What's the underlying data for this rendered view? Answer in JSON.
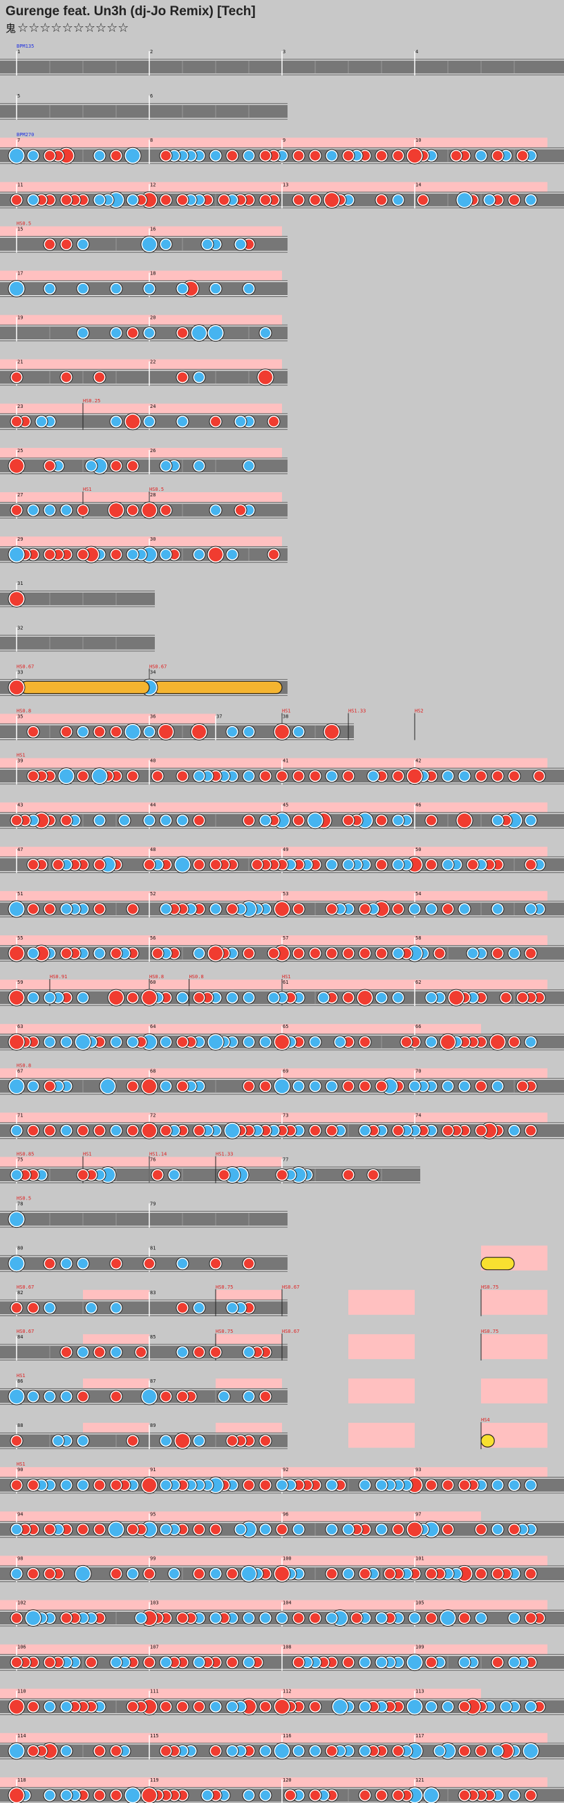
{
  "header": {
    "title": "Gurenge feat. Un3h (dj-Jo Remix) [Tech]",
    "difficulty_icon": "oni-icon",
    "stars": "☆☆☆☆☆☆☆☆☆☆"
  },
  "colors": {
    "background": "#c8c8c8",
    "lane": "#777777",
    "gogo": "#ffc0c0",
    "don": "#f03c30",
    "ka": "#46b4f0",
    "drumroll": "#f4b430",
    "balloon": "#f8e030"
  },
  "rows": [
    {
      "measures": [
        {
          "num": "1",
          "s": 4
        },
        {
          "num": "2",
          "s": 4
        },
        {
          "num": "3",
          "s": 4
        },
        {
          "num": "4",
          "s": 4
        }
      ],
      "annotations": [
        {
          "m": 0,
          "t": "BPM135",
          "c": "blue"
        }
      ],
      "notes": []
    },
    {
      "measures": [
        {
          "num": "5",
          "s": 4
        },
        {
          "num": "6",
          "s": 4
        }
      ],
      "annotations": [],
      "notes": []
    },
    {
      "measures": [
        {
          "num": "7",
          "s": 4
        },
        {
          "num": "8",
          "s": 4
        },
        {
          "num": "9",
          "s": 4
        },
        {
          "num": "10",
          "s": 4
        }
      ],
      "gogo": [
        [
          0,
          4
        ]
      ],
      "annotations": [
        {
          "m": 0,
          "t": "BPM270",
          "c": "blue"
        }
      ],
      "pattern": "dense"
    },
    {
      "measures": [
        {
          "num": "11",
          "s": 4
        },
        {
          "num": "12",
          "s": 4
        },
        {
          "num": "13",
          "s": 4
        },
        {
          "num": "14",
          "s": 4
        }
      ],
      "gogo": [
        [
          0,
          4
        ]
      ],
      "pattern": "dense"
    },
    {
      "measures": [
        {
          "num": "15",
          "s": 4
        },
        {
          "num": "16",
          "s": 4
        }
      ],
      "gogo": [
        [
          0,
          2
        ]
      ],
      "annotations": [
        {
          "m": 0,
          "t": "HS0.5",
          "c": "red"
        }
      ],
      "pattern": "sparse"
    },
    {
      "measures": [
        {
          "num": "17",
          "s": 4
        },
        {
          "num": "18",
          "s": 4
        }
      ],
      "gogo": [
        [
          0,
          2
        ]
      ],
      "pattern": "sparse"
    },
    {
      "measures": [
        {
          "num": "19",
          "s": 4
        },
        {
          "num": "20",
          "s": 4
        }
      ],
      "gogo": [
        [
          0,
          2
        ]
      ],
      "pattern": "sparse"
    },
    {
      "measures": [
        {
          "num": "21",
          "s": 4
        },
        {
          "num": "22",
          "s": 4
        }
      ],
      "gogo": [
        [
          0,
          2
        ]
      ],
      "pattern": "mix"
    },
    {
      "measures": [
        {
          "num": "23",
          "s": 4
        },
        {
          "num": "24",
          "s": 4
        }
      ],
      "gogo": [
        [
          0,
          2
        ]
      ],
      "annotations": [
        {
          "m": 0.5,
          "t": "HS0.25",
          "c": "red"
        }
      ],
      "pattern": "sparse"
    },
    {
      "measures": [
        {
          "num": "25",
          "s": 4
        },
        {
          "num": "26",
          "s": 4
        }
      ],
      "gogo": [
        [
          0,
          2
        ]
      ],
      "pattern": "mix"
    },
    {
      "measures": [
        {
          "num": "27",
          "s": 4
        },
        {
          "num": "28",
          "s": 4
        }
      ],
      "gogo": [
        [
          0,
          2
        ]
      ],
      "annotations": [
        {
          "m": 0.5,
          "t": "HS1",
          "c": "red"
        },
        {
          "m": 1,
          "t": "HS0.5",
          "c": "red"
        }
      ],
      "pattern": "mix"
    },
    {
      "measures": [
        {
          "num": "29",
          "s": 4
        },
        {
          "num": "30",
          "s": 4
        }
      ],
      "gogo": [
        [
          0,
          2
        ]
      ],
      "pattern": "dense"
    },
    {
      "measures": [
        {
          "num": "31",
          "s": 4
        }
      ],
      "notes": [
        {
          "p": 0,
          "t": "D",
          "b": 1
        }
      ]
    },
    {
      "measures": [
        {
          "num": "32",
          "s": 4
        }
      ],
      "notes": []
    },
    {
      "measures": [
        {
          "num": "33",
          "s": 4
        },
        {
          "num": "34",
          "s": 4
        }
      ],
      "annotations": [
        {
          "m": 0,
          "t": "HS0.67",
          "c": "red"
        },
        {
          "m": 1,
          "t": "HS0.67",
          "c": "red"
        }
      ],
      "notes": [
        {
          "p": 0,
          "t": "D",
          "b": 1
        },
        {
          "p": 0.03,
          "t": "R",
          "e": 1.0
        },
        {
          "p": 1,
          "t": "K",
          "b": 1
        },
        {
          "p": 1.03,
          "t": "R",
          "e": 2.0
        }
      ]
    },
    {
      "measures": [
        {
          "num": "35",
          "s": 4
        },
        {
          "num": "36",
          "s": 2
        },
        {
          "num": "37",
          "s": 2
        },
        {
          "num": "38",
          "s": 2
        }
      ],
      "gogo": [
        [
          0,
          1.5
        ]
      ],
      "annotations": [
        {
          "m": 0,
          "t": "HS0.8",
          "c": "red"
        },
        {
          "m": 2,
          "t": "HS1",
          "c": "red"
        },
        {
          "m": 2.5,
          "t": "HS1.33",
          "c": "red"
        },
        {
          "m": 3,
          "t": "HS2",
          "c": "red"
        }
      ],
      "pattern": "big"
    },
    {
      "measures": [
        {
          "num": "39",
          "s": 4
        },
        {
          "num": "40",
          "s": 4
        },
        {
          "num": "41",
          "s": 4
        },
        {
          "num": "42",
          "s": 4
        }
      ],
      "gogo": [
        [
          0,
          4
        ]
      ],
      "annotations": [
        {
          "m": 0,
          "t": "HS1",
          "c": "red"
        }
      ],
      "pattern": "dense"
    },
    {
      "measures": [
        {
          "num": "43",
          "s": 4
        },
        {
          "num": "44",
          "s": 4
        },
        {
          "num": "45",
          "s": 4
        },
        {
          "num": "46",
          "s": 4
        }
      ],
      "gogo": [
        [
          0,
          4
        ]
      ],
      "pattern": "dense"
    },
    {
      "measures": [
        {
          "num": "47",
          "s": 4
        },
        {
          "num": "48",
          "s": 4
        },
        {
          "num": "49",
          "s": 4
        },
        {
          "num": "50",
          "s": 4
        }
      ],
      "gogo": [
        [
          0,
          4
        ]
      ],
      "pattern": "dense"
    },
    {
      "measures": [
        {
          "num": "51",
          "s": 4
        },
        {
          "num": "52",
          "s": 4
        },
        {
          "num": "53",
          "s": 4
        },
        {
          "num": "54",
          "s": 4
        }
      ],
      "gogo": [
        [
          0,
          4
        ]
      ],
      "pattern": "dense"
    },
    {
      "measures": [
        {
          "num": "55",
          "s": 4
        },
        {
          "num": "56",
          "s": 4
        },
        {
          "num": "57",
          "s": 4
        },
        {
          "num": "58",
          "s": 4
        }
      ],
      "gogo": [
        [
          0,
          4
        ]
      ],
      "pattern": "dense"
    },
    {
      "measures": [
        {
          "num": "59",
          "s": 4
        },
        {
          "num": "60",
          "s": 4
        },
        {
          "num": "61",
          "s": 4
        },
        {
          "num": "62",
          "s": 4
        }
      ],
      "gogo": [
        [
          0,
          4
        ]
      ],
      "annotations": [
        {
          "m": 0.25,
          "t": "HS0.91",
          "c": "red"
        },
        {
          "m": 1,
          "t": "HS0.8",
          "c": "red"
        },
        {
          "m": 1.3,
          "t": "HS0.8",
          "c": "red"
        },
        {
          "m": 2,
          "t": "HS1",
          "c": "red"
        }
      ],
      "pattern": "dense"
    },
    {
      "measures": [
        {
          "num": "63",
          "s": 4
        },
        {
          "num": "64",
          "s": 4
        },
        {
          "num": "65",
          "s": 4
        },
        {
          "num": "66",
          "s": 4
        }
      ],
      "gogo": [
        [
          0,
          3.5
        ]
      ],
      "pattern": "dense"
    },
    {
      "measures": [
        {
          "num": "67",
          "s": 4
        },
        {
          "num": "68",
          "s": 4
        },
        {
          "num": "69",
          "s": 4
        },
        {
          "num": "70",
          "s": 4
        }
      ],
      "gogo": [
        [
          0,
          4
        ]
      ],
      "annotations": [
        {
          "m": 0,
          "t": "HS0.8",
          "c": "red"
        }
      ],
      "pattern": "dense"
    },
    {
      "measures": [
        {
          "num": "71",
          "s": 4
        },
        {
          "num": "72",
          "s": 4
        },
        {
          "num": "73",
          "s": 4
        },
        {
          "num": "74",
          "s": 4
        }
      ],
      "gogo": [
        [
          0,
          4
        ]
      ],
      "pattern": "dense"
    },
    {
      "measures": [
        {
          "num": "75",
          "s": 4
        },
        {
          "num": "76",
          "s": 4
        },
        {
          "num": "77",
          "s": 4
        }
      ],
      "gogo": [
        [
          0,
          2
        ]
      ],
      "annotations": [
        {
          "m": 0,
          "t": "HS0.85",
          "c": "red"
        },
        {
          "m": 0.5,
          "t": "HS1",
          "c": "red"
        },
        {
          "m": 1,
          "t": "HS1.14",
          "c": "red"
        },
        {
          "m": 1.5,
          "t": "HS1.33",
          "c": "red"
        }
      ],
      "pattern": "bursts"
    },
    {
      "measures": [
        {
          "num": "78",
          "s": 4
        },
        {
          "num": "79",
          "s": 4
        }
      ],
      "annotations": [
        {
          "m": 0,
          "t": "HS0.5",
          "c": "red"
        }
      ],
      "notes": [
        {
          "p": 0,
          "t": "K",
          "b": 1
        }
      ]
    },
    {
      "measures": [
        {
          "num": "80",
          "s": 4
        },
        {
          "num": "81",
          "s": 4
        }
      ],
      "gogo": [
        [
          3.5,
          4
        ]
      ],
      "pattern": "sparse",
      "notes": [
        {
          "p": 3.5,
          "t": "B",
          "e": 3.75
        }
      ]
    },
    {
      "measures": [
        {
          "num": "82",
          "s": 4
        },
        {
          "num": "83",
          "s": 4
        }
      ],
      "gogo": [
        [
          0.5,
          1
        ],
        [
          1.5,
          2
        ],
        [
          2.5,
          3
        ],
        [
          3.5,
          4
        ]
      ],
      "annotations": [
        {
          "m": 0,
          "t": "HS0.67",
          "c": "red"
        },
        {
          "m": 1.5,
          "t": "HS0.75",
          "c": "red"
        },
        {
          "m": 2,
          "t": "HS0.67",
          "c": "red"
        },
        {
          "m": 3.5,
          "t": "HS0.75",
          "c": "red"
        }
      ],
      "pattern": "mix"
    },
    {
      "measures": [
        {
          "num": "84",
          "s": 4
        },
        {
          "num": "85",
          "s": 4
        }
      ],
      "gogo": [
        [
          0.5,
          1
        ],
        [
          1.5,
          2
        ],
        [
          2.5,
          3
        ],
        [
          3.5,
          4
        ]
      ],
      "annotations": [
        {
          "m": 0,
          "t": "HS0.67",
          "c": "red"
        },
        {
          "m": 1.5,
          "t": "HS0.75",
          "c": "red"
        },
        {
          "m": 2,
          "t": "HS0.67",
          "c": "red"
        },
        {
          "m": 3.5,
          "t": "HS0.75",
          "c": "red"
        }
      ],
      "pattern": "mix"
    },
    {
      "measures": [
        {
          "num": "86",
          "s": 4
        },
        {
          "num": "87",
          "s": 4
        }
      ],
      "gogo": [
        [
          0.5,
          1
        ],
        [
          1.5,
          2
        ],
        [
          2.5,
          3
        ],
        [
          3.5,
          4
        ]
      ],
      "annotations": [
        {
          "m": 0,
          "t": "HS1",
          "c": "red"
        }
      ],
      "pattern": "mix"
    },
    {
      "measures": [
        {
          "num": "88",
          "s": 4
        },
        {
          "num": "89",
          "s": 4
        }
      ],
      "gogo": [
        [
          0.5,
          1
        ],
        [
          1.5,
          2
        ],
        [
          2.5,
          3
        ],
        [
          3.5,
          4
        ]
      ],
      "annotations": [
        {
          "m": 3.5,
          "t": "HS4",
          "c": "red"
        }
      ],
      "pattern": "mix",
      "notes": [
        {
          "p": 3.5,
          "t": "B",
          "e": 3.6
        }
      ]
    },
    {
      "measures": [
        {
          "num": "90",
          "s": 4
        },
        {
          "num": "91",
          "s": 4
        },
        {
          "num": "92",
          "s": 4
        },
        {
          "num": "93",
          "s": 4
        }
      ],
      "gogo": [
        [
          0,
          4
        ]
      ],
      "annotations": [
        {
          "m": 0,
          "t": "HS1",
          "c": "red"
        }
      ],
      "pattern": "dense"
    },
    {
      "measures": [
        {
          "num": "94",
          "s": 4
        },
        {
          "num": "95",
          "s": 4
        },
        {
          "num": "96",
          "s": 4
        },
        {
          "num": "97",
          "s": 4
        }
      ],
      "gogo": [
        [
          0,
          3.5
        ]
      ],
      "pattern": "dense"
    },
    {
      "measures": [
        {
          "num": "98",
          "s": 4
        },
        {
          "num": "99",
          "s": 4
        },
        {
          "num": "100",
          "s": 4
        },
        {
          "num": "101",
          "s": 4
        }
      ],
      "gogo": [
        [
          0,
          4
        ]
      ],
      "pattern": "dense"
    },
    {
      "measures": [
        {
          "num": "102",
          "s": 4
        },
        {
          "num": "103",
          "s": 4
        },
        {
          "num": "104",
          "s": 4
        },
        {
          "num": "105",
          "s": 4
        }
      ],
      "gogo": [
        [
          0,
          4
        ]
      ],
      "pattern": "dense"
    },
    {
      "measures": [
        {
          "num": "106",
          "s": 4
        },
        {
          "num": "107",
          "s": 4
        },
        {
          "num": "108",
          "s": 4
        },
        {
          "num": "109",
          "s": 4
        }
      ],
      "gogo": [
        [
          0,
          4
        ]
      ],
      "pattern": "dense"
    },
    {
      "measures": [
        {
          "num": "110",
          "s": 4
        },
        {
          "num": "111",
          "s": 4
        },
        {
          "num": "112",
          "s": 4
        },
        {
          "num": "113",
          "s": 4
        }
      ],
      "gogo": [
        [
          0,
          3.5
        ]
      ],
      "pattern": "dense"
    },
    {
      "measures": [
        {
          "num": "114",
          "s": 4
        },
        {
          "num": "115",
          "s": 4
        },
        {
          "num": "116",
          "s": 4
        },
        {
          "num": "117",
          "s": 4
        }
      ],
      "gogo": [
        [
          0,
          4
        ]
      ],
      "pattern": "dense"
    },
    {
      "measures": [
        {
          "num": "118",
          "s": 4
        },
        {
          "num": "119",
          "s": 4
        },
        {
          "num": "120",
          "s": 4
        },
        {
          "num": "121",
          "s": 4
        }
      ],
      "gogo": [
        [
          0,
          4
        ]
      ],
      "pattern": "dense"
    }
  ]
}
